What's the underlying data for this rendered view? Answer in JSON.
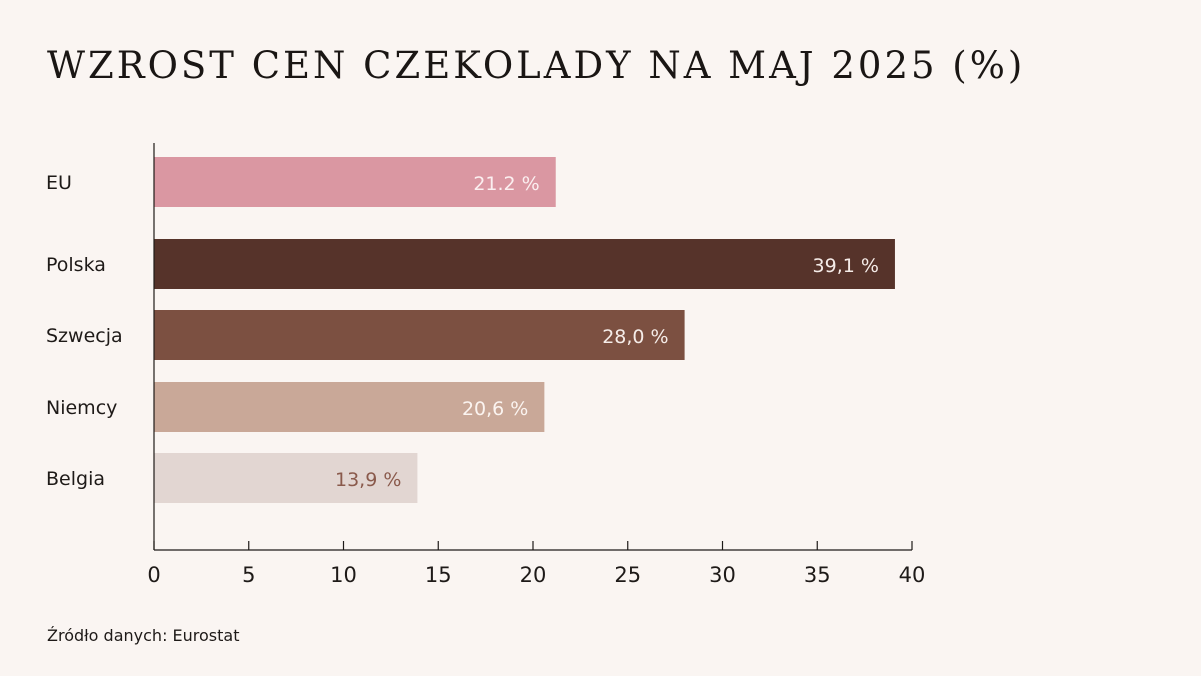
{
  "chart_data": {
    "type": "bar",
    "orientation": "horizontal",
    "title": "WZROST CEN CZEKOLADY NA MAJ 2025 (%)",
    "categories": [
      "EU",
      "Polska",
      "Szwecja",
      "Niemcy",
      "Belgia"
    ],
    "values": [
      21.2,
      39.1,
      28.0,
      20.6,
      13.9
    ],
    "data_labels": [
      "21.2 %",
      "39,1 %",
      "28,0 %",
      "20,6 %",
      "13,9 %"
    ],
    "colors": [
      "#da97a2",
      "#56332a",
      "#7c5041",
      "#c9a898",
      "#e2d6d2"
    ],
    "label_colors": [
      "#fbeff0",
      "#f5ece8",
      "#f5ece8",
      "#fbf4f0",
      "#8a5a4c"
    ],
    "xlim": [
      0,
      40
    ],
    "xticks": [
      0,
      5,
      10,
      15,
      20,
      25,
      30,
      35,
      40
    ],
    "xlabel": "",
    "ylabel": "",
    "grid": false,
    "source": "Źródło danych: Eurostat"
  }
}
